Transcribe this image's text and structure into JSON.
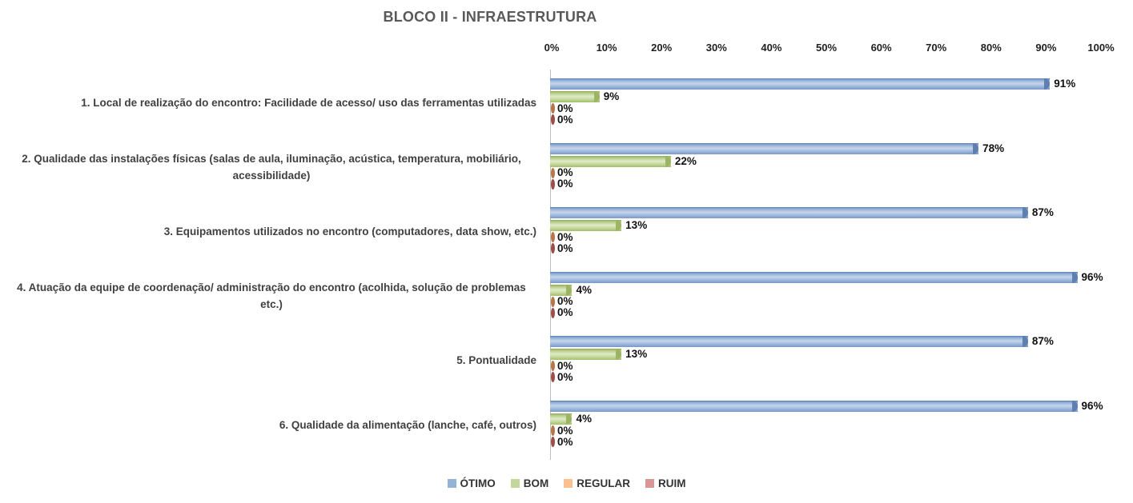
{
  "title": "BLOCO II - INFRAESTRUTURA",
  "chart_data": {
    "type": "bar",
    "orientation": "horizontal",
    "title": "BLOCO II - INFRAESTRUTURA",
    "categories": [
      "1. Local de realização do encontro: Facilidade de acesso/ uso das ferramentas utilizadas",
      "2. Qualidade das instalações físicas (salas de aula, iluminação, acústica, temperatura, mobiliário, acessibilidade)",
      "3. Equipamentos utilizados no encontro (computadores, data show, etc.)",
      "4. Atuação da equipe de coordenação/ administração do encontro (acolhida, solução de problemas etc.)",
      "5. Pontualidade",
      "6. Qualidade da alimentação (lanche, café, outros)"
    ],
    "series": [
      {
        "name": "ÓTIMO",
        "color": "#95B3D7",
        "values": [
          91,
          78,
          87,
          96,
          87,
          96
        ]
      },
      {
        "name": "BOM",
        "color": "#C3D69B",
        "values": [
          9,
          22,
          13,
          4,
          13,
          4
        ]
      },
      {
        "name": "REGULAR",
        "color": "#FAC090",
        "values": [
          0,
          0,
          0,
          0,
          0,
          0
        ]
      },
      {
        "name": "RUIM",
        "color": "#D99694",
        "values": [
          0,
          0,
          0,
          0,
          0,
          0
        ]
      }
    ],
    "value_labels": [
      "91%",
      "9%",
      "0%",
      "0%",
      "78%",
      "22%",
      "0%",
      "0%",
      "87%",
      "13%",
      "0%",
      "0%",
      "96%",
      "4%",
      "0%",
      "0%",
      "87%",
      "13%",
      "0%",
      "0%",
      "96%",
      "4%",
      "0%",
      "0%"
    ],
    "xlim": [
      0,
      100
    ],
    "x_ticks": [
      "0%",
      "10%",
      "20%",
      "30%",
      "40%",
      "50%",
      "60%",
      "70%",
      "80%",
      "90%",
      "100%"
    ],
    "data_labels": "outside-end percent",
    "legend_position": "bottom",
    "grid": false
  }
}
